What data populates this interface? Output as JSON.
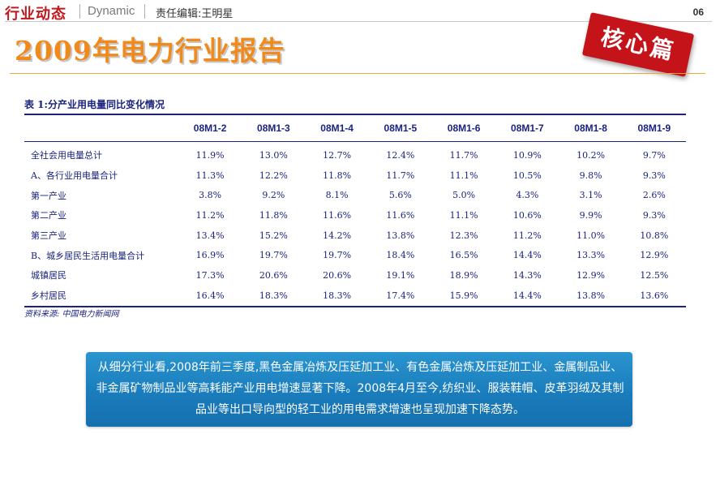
{
  "header": {
    "section_tag": "行业动态",
    "section_tag_en": "Dynamic",
    "editor": "责任编辑:王明星",
    "page_number": "06"
  },
  "title": "2009年电力行业报告",
  "stamp": "核心篇",
  "table": {
    "caption": "表 1:分产业用电量同比变化情况",
    "columns": [
      "08M1-2",
      "08M1-3",
      "08M1-4",
      "08M1-5",
      "08M1-6",
      "08M1-7",
      "08M1-8",
      "08M1-9"
    ],
    "rows": [
      {
        "label": "全社会用电量总计",
        "values": [
          "11.9%",
          "13.0%",
          "12.7%",
          "12.4%",
          "11.7%",
          "10.9%",
          "10.2%",
          "9.7%"
        ]
      },
      {
        "label": "A、各行业用电量合计",
        "values": [
          "11.3%",
          "12.2%",
          "11.8%",
          "11.7%",
          "11.1%",
          "10.5%",
          "9.8%",
          "9.3%"
        ]
      },
      {
        "label": "第一产业",
        "values": [
          "3.8%",
          "9.2%",
          "8.1%",
          "5.6%",
          "5.0%",
          "4.3%",
          "3.1%",
          "2.6%"
        ]
      },
      {
        "label": "第二产业",
        "values": [
          "11.2%",
          "11.8%",
          "11.6%",
          "11.6%",
          "11.1%",
          "10.6%",
          "9.9%",
          "9.3%"
        ]
      },
      {
        "label": "第三产业",
        "values": [
          "13.4%",
          "15.2%",
          "14.2%",
          "13.8%",
          "12.3%",
          "11.2%",
          "11.0%",
          "10.8%"
        ]
      },
      {
        "label": "B、城乡居民生活用电量合计",
        "values": [
          "16.9%",
          "19.7%",
          "19.7%",
          "18.4%",
          "16.5%",
          "14.4%",
          "13.3%",
          "12.9%"
        ]
      },
      {
        "label": "城镇居民",
        "values": [
          "17.3%",
          "20.6%",
          "20.6%",
          "19.1%",
          "18.9%",
          "14.3%",
          "12.9%",
          "12.5%"
        ]
      },
      {
        "label": "乡村居民",
        "values": [
          "16.4%",
          "18.3%",
          "18.3%",
          "17.4%",
          "15.9%",
          "14.4%",
          "13.8%",
          "13.6%"
        ]
      }
    ],
    "source": "资料来源: 中国电力新闻网"
  },
  "note": "从细分行业看,2008年前三季度,黑色金属冶炼及压延加工业、有色金属冶炼及压延加工业、金属制品业、非金属矿物制品业等高耗能产业用电增速显著下降。2008年4月至今,纺织业、服装鞋帽、皮革羽绒及其制品业等出口导向型的轻工业的用电需求增速也呈现加速下降态势。",
  "colors": {
    "brand_red": "#c0181e",
    "title_orange": "#f08a1c",
    "table_navy": "#1a237e",
    "note_blue": "#1a7cbc"
  }
}
